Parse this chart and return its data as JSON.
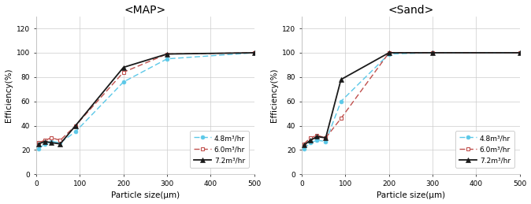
{
  "map": {
    "title": "<MAP>",
    "x": [
      5,
      20,
      35,
      55,
      90,
      200,
      300,
      500
    ],
    "y_4_8": [
      21,
      25,
      27,
      26,
      35,
      76,
      95,
      100
    ],
    "y_6_0": [
      26,
      28,
      30,
      28,
      40,
      84,
      99,
      100
    ],
    "y_7_2": [
      25,
      27,
      26,
      25,
      40,
      88,
      99,
      100
    ]
  },
  "sand": {
    "title": "<Sand>",
    "x": [
      5,
      20,
      35,
      55,
      90,
      200,
      300,
      500
    ],
    "y_4_8": [
      21,
      26,
      28,
      27,
      60,
      99,
      100,
      100
    ],
    "y_6_0": [
      25,
      30,
      32,
      30,
      46,
      100,
      100,
      100
    ],
    "y_7_2": [
      24,
      28,
      31,
      30,
      78,
      100,
      100,
      100
    ]
  },
  "color_4_8": "#5BC8E8",
  "color_6_0": "#C0504D",
  "color_7_2": "#1A1A1A",
  "label_4_8": "4.8m³/hr",
  "label_6_0": "6.0m³/hr",
  "label_7_2": "7.2m³/hr",
  "xlabel": "Particle size(μm)",
  "ylabel": "Efficiency(%)",
  "xlim": [
    0,
    500
  ],
  "ylim": [
    0,
    130
  ],
  "yticks": [
    0,
    20,
    40,
    60,
    80,
    100,
    120
  ],
  "xticks": [
    0,
    100,
    200,
    300,
    400,
    500
  ],
  "background_color": "#ffffff",
  "grid_color": "#cccccc"
}
